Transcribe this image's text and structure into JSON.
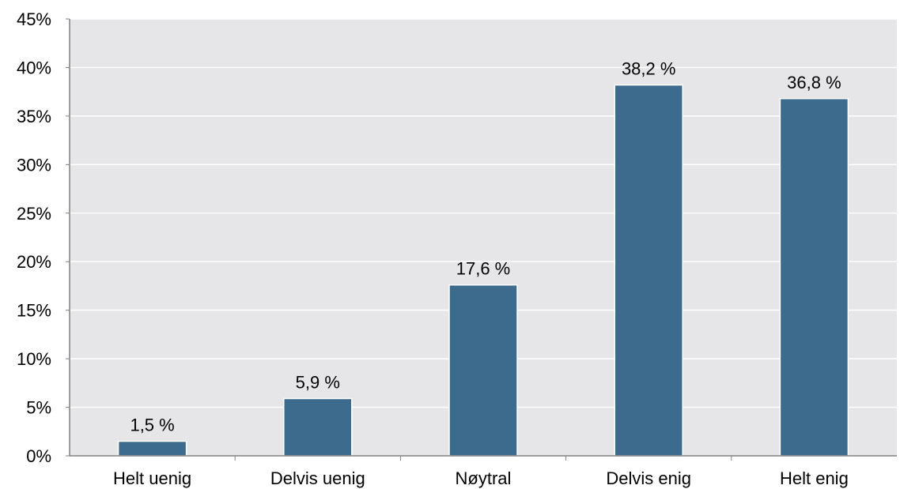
{
  "chart_data": {
    "type": "bar",
    "title": "",
    "xlabel": "",
    "ylabel": "",
    "categories": [
      "Helt uenig",
      "Delvis uenig",
      "Nøytral",
      "Delvis enig",
      "Helt enig"
    ],
    "values": [
      1.5,
      5.9,
      17.6,
      38.2,
      36.8
    ],
    "data_labels": [
      "1,5 %",
      "5,9 %",
      "17,6 %",
      "38,2 %",
      "36,8 %"
    ],
    "y_ticks": [
      "0%",
      "5%",
      "10%",
      "15%",
      "20%",
      "25%",
      "30%",
      "35%",
      "40%",
      "45%"
    ],
    "ylim": [
      0,
      45
    ],
    "y_tick_step": 5,
    "grid": "horizontal",
    "legend": "none",
    "colors": {
      "bar": "#3c6b8e",
      "bar_outline": "#ffffff",
      "plot_background": "#e6e6e8",
      "gridline": "#ffffff",
      "axis": "#808080",
      "text": "#000000"
    }
  }
}
